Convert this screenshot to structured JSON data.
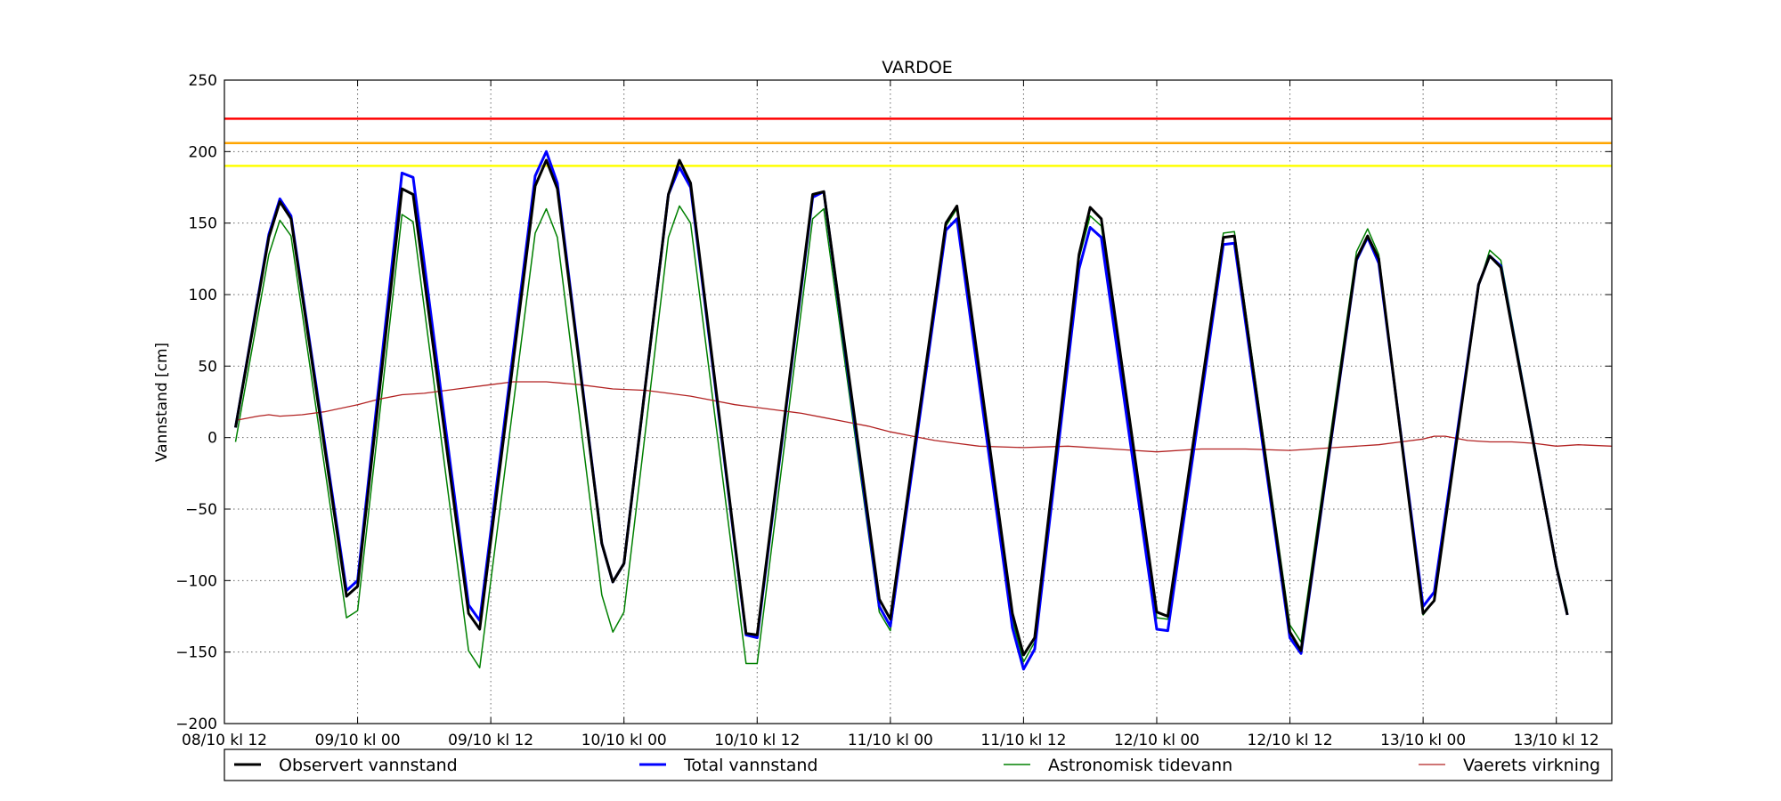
{
  "chart_data": {
    "type": "line",
    "title": "VARDOE",
    "xlabel": "",
    "ylabel": "Vannstand [cm]",
    "ylim": [
      -200,
      250
    ],
    "xlim": [
      "2012-10-08T12:00",
      "2012-10-13T17:00"
    ],
    "yticks": [
      -200,
      -150,
      -100,
      -50,
      0,
      50,
      100,
      150,
      200,
      250
    ],
    "xticks": [
      {
        "t": "2012-10-08T12:00",
        "label": "08/10 kl 12"
      },
      {
        "t": "2012-10-09T00:00",
        "label": "09/10 kl 00"
      },
      {
        "t": "2012-10-09T12:00",
        "label": "09/10 kl 12"
      },
      {
        "t": "2012-10-10T00:00",
        "label": "10/10 kl 00"
      },
      {
        "t": "2012-10-10T12:00",
        "label": "10/10 kl 12"
      },
      {
        "t": "2012-10-11T00:00",
        "label": "11/10 kl 00"
      },
      {
        "t": "2012-10-11T12:00",
        "label": "11/10 kl 12"
      },
      {
        "t": "2012-10-12T00:00",
        "label": "12/10 kl 00"
      },
      {
        "t": "2012-10-12T12:00",
        "label": "12/10 kl 12"
      },
      {
        "t": "2012-10-13T00:00",
        "label": "13/10 kl 00"
      },
      {
        "t": "2012-10-13T12:00",
        "label": "13/10 kl 12"
      }
    ],
    "grid": true,
    "legend_position": "bottom",
    "reference_levels": [
      {
        "value": 223,
        "color": "#ff0000"
      },
      {
        "value": 206,
        "color": "#ffa500"
      },
      {
        "value": 190,
        "color": "#ffff00"
      }
    ],
    "series": [
      {
        "name": "Observert vannstand",
        "color": "#000000",
        "points": [
          [
            "2012-10-08T13:00",
            7
          ],
          [
            "2012-10-08T16:00",
            140
          ],
          [
            "2012-10-08T17:00",
            165
          ],
          [
            "2012-10-08T18:00",
            153
          ],
          [
            "2012-10-08T23:00",
            -111
          ],
          [
            "2012-10-09T00:00",
            -104
          ],
          [
            "2012-10-09T04:00",
            174
          ],
          [
            "2012-10-09T05:00",
            170
          ],
          [
            "2012-10-09T10:00",
            -123
          ],
          [
            "2012-10-09T11:00",
            -134
          ],
          [
            "2012-10-09T16:00",
            176
          ],
          [
            "2012-10-09T17:00",
            194
          ],
          [
            "2012-10-09T18:00",
            174
          ],
          [
            "2012-10-09T22:00",
            -74
          ],
          [
            "2012-10-09T23:00",
            -101
          ],
          [
            "2012-10-10T00:00",
            -88
          ],
          [
            "2012-10-10T04:00",
            170
          ],
          [
            "2012-10-10T05:00",
            194
          ],
          [
            "2012-10-10T06:00",
            178
          ],
          [
            "2012-10-10T11:00",
            -137
          ],
          [
            "2012-10-10T12:00",
            -138
          ],
          [
            "2012-10-10T17:00",
            170
          ],
          [
            "2012-10-10T18:00",
            172
          ],
          [
            "2012-10-10T23:00",
            -113
          ],
          [
            "2012-10-11T00:00",
            -127
          ],
          [
            "2012-10-11T05:00",
            150
          ],
          [
            "2012-10-11T06:00",
            162
          ],
          [
            "2012-10-11T11:00",
            -123
          ],
          [
            "2012-10-11T12:00",
            -152
          ],
          [
            "2012-10-11T13:00",
            -140
          ],
          [
            "2012-10-11T17:00",
            128
          ],
          [
            "2012-10-11T18:00",
            161
          ],
          [
            "2012-10-11T19:00",
            153
          ],
          [
            "2012-10-12T00:00",
            -122
          ],
          [
            "2012-10-12T01:00",
            -125
          ],
          [
            "2012-10-12T06:00",
            140
          ],
          [
            "2012-10-12T07:00",
            141
          ],
          [
            "2012-10-12T12:00",
            -136
          ],
          [
            "2012-10-12T13:00",
            -149
          ],
          [
            "2012-10-12T18:00",
            125
          ],
          [
            "2012-10-12T19:00",
            141
          ],
          [
            "2012-10-12T20:00",
            125
          ],
          [
            "2012-10-13T00:00",
            -123
          ],
          [
            "2012-10-13T01:00",
            -114
          ],
          [
            "2012-10-13T05:00",
            107
          ],
          [
            "2012-10-13T06:00",
            127
          ],
          [
            "2012-10-13T07:00",
            119
          ],
          [
            "2012-10-13T12:00",
            -90
          ],
          [
            "2012-10-13T13:00",
            -124
          ]
        ]
      },
      {
        "name": "Total vannstand",
        "color": "#0000ff",
        "points": [
          [
            "2012-10-08T13:00",
            7
          ],
          [
            "2012-10-08T16:00",
            142
          ],
          [
            "2012-10-08T17:00",
            167
          ],
          [
            "2012-10-08T18:00",
            155
          ],
          [
            "2012-10-08T23:00",
            -107
          ],
          [
            "2012-10-09T00:00",
            -100
          ],
          [
            "2012-10-09T04:00",
            185
          ],
          [
            "2012-10-09T05:00",
            182
          ],
          [
            "2012-10-09T10:00",
            -117
          ],
          [
            "2012-10-09T11:00",
            -128
          ],
          [
            "2012-10-09T16:00",
            183
          ],
          [
            "2012-10-09T17:00",
            200
          ],
          [
            "2012-10-09T18:00",
            178
          ],
          [
            "2012-10-09T22:00",
            -74
          ],
          [
            "2012-10-09T23:00",
            -101
          ],
          [
            "2012-10-10T00:00",
            -88
          ],
          [
            "2012-10-10T04:00",
            170
          ],
          [
            "2012-10-10T05:00",
            189
          ],
          [
            "2012-10-10T06:00",
            175
          ],
          [
            "2012-10-10T11:00",
            -138
          ],
          [
            "2012-10-10T12:00",
            -140
          ],
          [
            "2012-10-10T17:00",
            168
          ],
          [
            "2012-10-10T18:00",
            172
          ],
          [
            "2012-10-10T23:00",
            -118
          ],
          [
            "2012-10-11T00:00",
            -132
          ],
          [
            "2012-10-11T05:00",
            145
          ],
          [
            "2012-10-11T06:00",
            153
          ],
          [
            "2012-10-11T11:00",
            -133
          ],
          [
            "2012-10-11T12:00",
            -162
          ],
          [
            "2012-10-11T13:00",
            -148
          ],
          [
            "2012-10-11T17:00",
            118
          ],
          [
            "2012-10-11T18:00",
            147
          ],
          [
            "2012-10-11T19:00",
            140
          ],
          [
            "2012-10-12T00:00",
            -134
          ],
          [
            "2012-10-12T01:00",
            -135
          ],
          [
            "2012-10-12T06:00",
            135
          ],
          [
            "2012-10-12T07:00",
            136
          ],
          [
            "2012-10-12T12:00",
            -140
          ],
          [
            "2012-10-12T13:00",
            -151
          ],
          [
            "2012-10-12T18:00",
            124
          ],
          [
            "2012-10-12T19:00",
            140
          ],
          [
            "2012-10-12T20:00",
            122
          ],
          [
            "2012-10-13T00:00",
            -118
          ],
          [
            "2012-10-13T01:00",
            -108
          ],
          [
            "2012-10-13T05:00",
            107
          ],
          [
            "2012-10-13T06:00",
            127
          ],
          [
            "2012-10-13T07:00",
            120
          ],
          [
            "2012-10-13T12:00",
            -90
          ],
          [
            "2012-10-13T13:00",
            -124
          ]
        ]
      },
      {
        "name": "Astronomisk tidevann",
        "color": "#008000",
        "points": [
          [
            "2012-10-08T13:00",
            -3
          ],
          [
            "2012-10-08T16:00",
            128
          ],
          [
            "2012-10-08T17:00",
            152
          ],
          [
            "2012-10-08T18:00",
            141
          ],
          [
            "2012-10-08T23:00",
            -126
          ],
          [
            "2012-10-09T00:00",
            -121
          ],
          [
            "2012-10-09T04:00",
            156
          ],
          [
            "2012-10-09T05:00",
            151
          ],
          [
            "2012-10-09T10:00",
            -149
          ],
          [
            "2012-10-09T11:00",
            -161
          ],
          [
            "2012-10-09T16:00",
            143
          ],
          [
            "2012-10-09T17:00",
            160
          ],
          [
            "2012-10-09T18:00",
            140
          ],
          [
            "2012-10-09T22:00",
            -110
          ],
          [
            "2012-10-09T23:00",
            -136
          ],
          [
            "2012-10-10T00:00",
            -122
          ],
          [
            "2012-10-10T04:00",
            140
          ],
          [
            "2012-10-10T05:00",
            162
          ],
          [
            "2012-10-10T06:00",
            150
          ],
          [
            "2012-10-10T11:00",
            -158
          ],
          [
            "2012-10-10T12:00",
            -158
          ],
          [
            "2012-10-10T17:00",
            153
          ],
          [
            "2012-10-10T18:00",
            160
          ],
          [
            "2012-10-10T23:00",
            -122
          ],
          [
            "2012-10-11T00:00",
            -135
          ],
          [
            "2012-10-11T05:00",
            148
          ],
          [
            "2012-10-11T06:00",
            160
          ],
          [
            "2012-10-11T11:00",
            -128
          ],
          [
            "2012-10-11T12:00",
            -157
          ],
          [
            "2012-10-11T13:00",
            -143
          ],
          [
            "2012-10-11T17:00",
            125
          ],
          [
            "2012-10-11T18:00",
            155
          ],
          [
            "2012-10-11T19:00",
            148
          ],
          [
            "2012-10-12T00:00",
            -126
          ],
          [
            "2012-10-12T01:00",
            -127
          ],
          [
            "2012-10-12T06:00",
            143
          ],
          [
            "2012-10-12T07:00",
            144
          ],
          [
            "2012-10-12T12:00",
            -131
          ],
          [
            "2012-10-12T13:00",
            -143
          ],
          [
            "2012-10-12T18:00",
            130
          ],
          [
            "2012-10-12T19:00",
            146
          ],
          [
            "2012-10-12T20:00",
            128
          ],
          [
            "2012-10-13T00:00",
            -124
          ],
          [
            "2012-10-13T01:00",
            -114
          ],
          [
            "2012-10-13T05:00",
            106
          ],
          [
            "2012-10-13T06:00",
            131
          ],
          [
            "2012-10-13T07:00",
            124
          ],
          [
            "2012-10-13T12:00",
            -88
          ],
          [
            "2012-10-13T13:00",
            -121
          ]
        ]
      },
      {
        "name": "Vaerets virkning",
        "color": "#b22222",
        "points": [
          [
            "2012-10-08T13:00",
            12
          ],
          [
            "2012-10-08T15:00",
            15
          ],
          [
            "2012-10-08T16:00",
            16
          ],
          [
            "2012-10-08T17:00",
            15
          ],
          [
            "2012-10-08T19:00",
            16
          ],
          [
            "2012-10-08T21:00",
            18
          ],
          [
            "2012-10-09T00:00",
            23
          ],
          [
            "2012-10-09T02:00",
            27
          ],
          [
            "2012-10-09T04:00",
            30
          ],
          [
            "2012-10-09T06:00",
            31
          ],
          [
            "2012-10-09T08:00",
            33
          ],
          [
            "2012-10-09T12:00",
            37
          ],
          [
            "2012-10-09T14:00",
            39
          ],
          [
            "2012-10-09T17:00",
            39
          ],
          [
            "2012-10-09T20:00",
            37
          ],
          [
            "2012-10-09T23:00",
            34
          ],
          [
            "2012-10-10T02:00",
            33
          ],
          [
            "2012-10-10T04:00",
            31
          ],
          [
            "2012-10-10T06:00",
            29
          ],
          [
            "2012-10-10T08:00",
            26
          ],
          [
            "2012-10-10T10:00",
            23
          ],
          [
            "2012-10-10T12:00",
            21
          ],
          [
            "2012-10-10T14:00",
            19
          ],
          [
            "2012-10-10T16:00",
            17
          ],
          [
            "2012-10-10T18:00",
            14
          ],
          [
            "2012-10-10T20:00",
            11
          ],
          [
            "2012-10-10T22:00",
            8
          ],
          [
            "2012-10-11T00:00",
            4
          ],
          [
            "2012-10-11T02:00",
            1
          ],
          [
            "2012-10-11T04:00",
            -2
          ],
          [
            "2012-10-11T06:00",
            -4
          ],
          [
            "2012-10-11T08:00",
            -6
          ],
          [
            "2012-10-11T12:00",
            -7
          ],
          [
            "2012-10-11T16:00",
            -6
          ],
          [
            "2012-10-11T20:00",
            -8
          ],
          [
            "2012-10-12T00:00",
            -10
          ],
          [
            "2012-10-12T04:00",
            -8
          ],
          [
            "2012-10-12T08:00",
            -8
          ],
          [
            "2012-10-12T12:00",
            -9
          ],
          [
            "2012-10-12T14:00",
            -8
          ],
          [
            "2012-10-12T16:00",
            -7
          ],
          [
            "2012-10-12T18:00",
            -6
          ],
          [
            "2012-10-12T20:00",
            -5
          ],
          [
            "2012-10-12T22:00",
            -3
          ],
          [
            "2012-10-13T00:00",
            -1
          ],
          [
            "2012-10-13T01:00",
            1
          ],
          [
            "2012-10-13T02:00",
            1
          ],
          [
            "2012-10-13T04:00",
            -2
          ],
          [
            "2012-10-13T06:00",
            -3
          ],
          [
            "2012-10-13T08:00",
            -3
          ],
          [
            "2012-10-13T10:00",
            -4
          ],
          [
            "2012-10-13T12:00",
            -6
          ],
          [
            "2012-10-13T14:00",
            -5
          ],
          [
            "2012-10-13T17:00",
            -6
          ]
        ]
      }
    ]
  }
}
